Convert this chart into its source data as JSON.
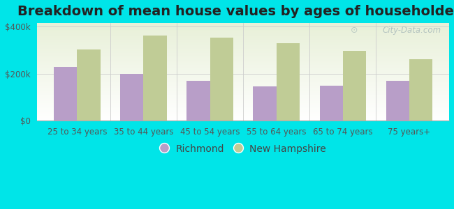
{
  "title": "Breakdown of mean house values by ages of householders",
  "categories": [
    "25 to 34 years",
    "35 to 44 years",
    "45 to 54 years",
    "55 to 64 years",
    "65 to 74 years",
    "75 years+"
  ],
  "richmond_values": [
    228000,
    198000,
    168000,
    145000,
    148000,
    168000
  ],
  "nh_values": [
    303000,
    362000,
    352000,
    330000,
    298000,
    262000
  ],
  "richmond_color": "#b89ec8",
  "nh_color": "#c0cc96",
  "background_color": "#00e5e8",
  "plot_bg_top": "#e8f0d8",
  "plot_bg_bottom": "#f8fdf0",
  "yticks": [
    0,
    200000,
    400000
  ],
  "ylim": [
    0,
    415000
  ],
  "ylabel_labels": [
    "$0",
    "$200k",
    "$400k"
  ],
  "legend_richmond": "Richmond",
  "legend_nh": "New Hampshire",
  "title_fontsize": 14,
  "tick_fontsize": 8.5,
  "legend_fontsize": 10,
  "bar_width": 0.35,
  "watermark": "City-Data.com"
}
